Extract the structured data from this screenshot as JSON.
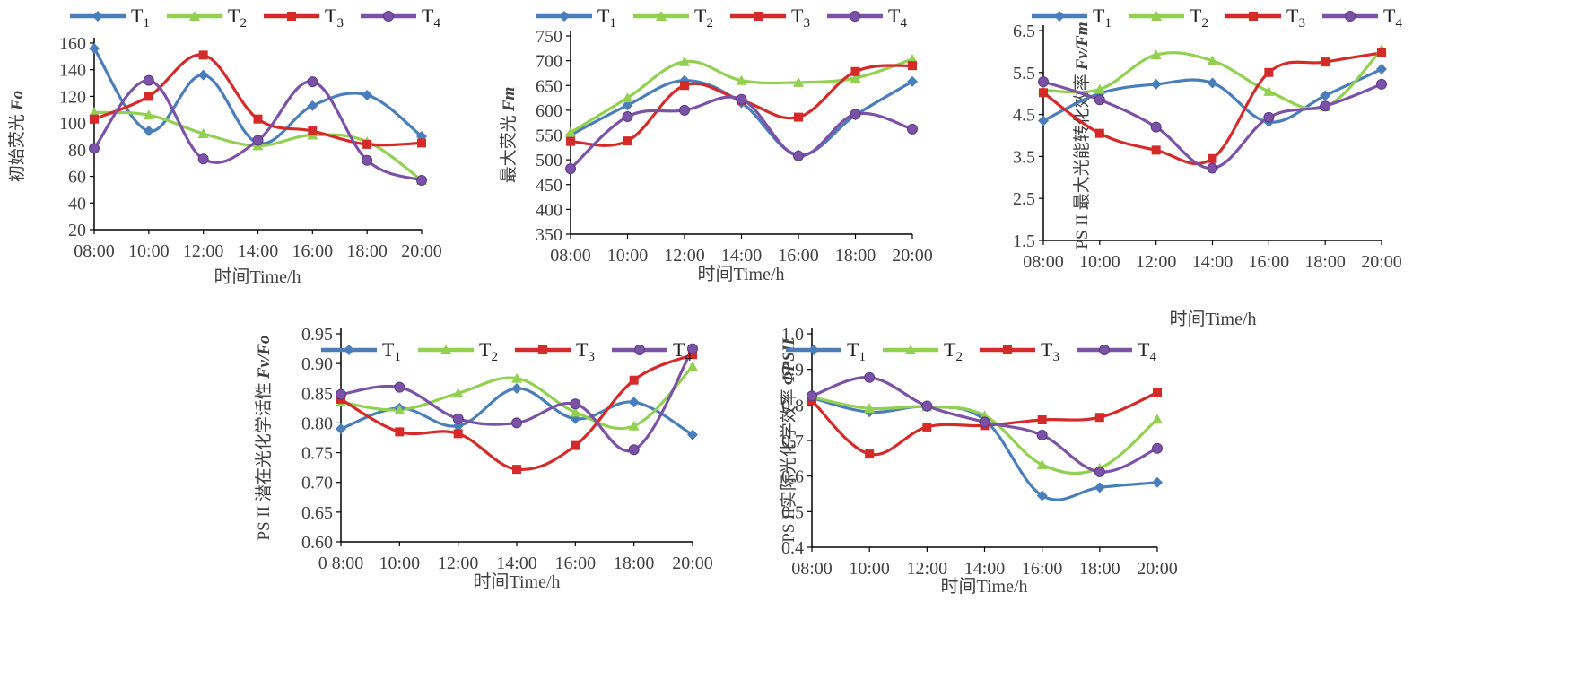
{
  "series_colors": {
    "T1": "#4a7ebb",
    "T2": "#92d050",
    "T3": "#d42a2a",
    "T4": "#7b52a6"
  },
  "series_markers": {
    "T1": "diamond",
    "T2": "triangle",
    "T3": "square",
    "T4": "circle"
  },
  "legend": [
    {
      "key": "T1",
      "main": "T",
      "sub": "1"
    },
    {
      "key": "T2",
      "main": "T",
      "sub": "2"
    },
    {
      "key": "T3",
      "main": "T",
      "sub": "3"
    },
    {
      "key": "T4",
      "main": "T",
      "sub": "4"
    }
  ],
  "chart_data": [
    {
      "type": "line",
      "ylabel": "初始荧光",
      "ylabel_italic": "Fo",
      "xlabel": "时间Time/h",
      "x": [
        "08:00",
        "10:00",
        "12:00",
        "14:00",
        "16:00",
        "18:00",
        "20:00"
      ],
      "ylim": [
        20,
        160
      ],
      "ystep": 20,
      "ydecimals": 0,
      "series": [
        {
          "key": "T1",
          "values": [
            156,
            94,
            136,
            85,
            113,
            121,
            90
          ]
        },
        {
          "key": "T2",
          "values": [
            108,
            106,
            92,
            83,
            91,
            86,
            57
          ]
        },
        {
          "key": "T3",
          "values": [
            103,
            120,
            151,
            103,
            94,
            84,
            85
          ]
        },
        {
          "key": "T4",
          "values": [
            81,
            132,
            73,
            87,
            131,
            72,
            57
          ]
        }
      ]
    },
    {
      "type": "line",
      "ylabel": "最大荧光",
      "ylabel_italic": "Fm",
      "xlabel": "时间Time/h",
      "x": [
        "08:00",
        "10:00",
        "12:00",
        "14:00",
        "16:00",
        "18:00",
        "20:00"
      ],
      "ylim": [
        350,
        750
      ],
      "ystep": 50,
      "ydecimals": 0,
      "series": [
        {
          "key": "T1",
          "values": [
            550,
            610,
            660,
            615,
            510,
            590,
            658
          ]
        },
        {
          "key": "T2",
          "values": [
            555,
            625,
            698,
            660,
            656,
            665,
            703
          ]
        },
        {
          "key": "T3",
          "values": [
            537,
            538,
            650,
            620,
            586,
            678,
            690
          ]
        },
        {
          "key": "T4",
          "values": [
            482,
            587,
            600,
            622,
            508,
            592,
            562
          ]
        }
      ]
    },
    {
      "type": "line",
      "ylabel": "PS II 最大光能转化效率",
      "ylabel_italic": "Fv/Fm",
      "xlabel": "时间Time/h",
      "x": [
        "08:00",
        "10:00",
        "12:00",
        "14:00",
        "16:00",
        "18:00",
        "20:00"
      ],
      "ylim": [
        1.5,
        6.5
      ],
      "ystep": 1,
      "ydecimals": 1,
      "series": [
        {
          "key": "T1",
          "values": [
            4.35,
            5.0,
            5.22,
            5.25,
            4.32,
            4.95,
            5.58
          ]
        },
        {
          "key": "T2",
          "values": [
            5.08,
            5.1,
            5.92,
            5.78,
            5.05,
            4.68,
            6.05
          ]
        },
        {
          "key": "T3",
          "values": [
            5.02,
            4.05,
            3.65,
            3.45,
            5.5,
            5.75,
            5.97
          ]
        },
        {
          "key": "T4",
          "values": [
            5.28,
            4.85,
            4.2,
            3.22,
            4.43,
            4.7,
            5.22
          ]
        }
      ]
    },
    {
      "type": "line",
      "ylabel": "PS II 潜在光化学活性",
      "ylabel_italic": "Fv/Fo",
      "xlabel": "时间Time/h",
      "x": [
        "0 8:00",
        "10:00",
        "12:00",
        "14:00",
        "16:00",
        "18:00",
        "20:00"
      ],
      "ylim": [
        0.6,
        0.95
      ],
      "ystep": 0.05,
      "ydecimals": 2,
      "series": [
        {
          "key": "T1",
          "values": [
            0.79,
            0.825,
            0.795,
            0.858,
            0.807,
            0.835,
            0.78
          ]
        },
        {
          "key": "T2",
          "values": [
            0.835,
            0.822,
            0.85,
            0.875,
            0.818,
            0.795,
            0.895
          ]
        },
        {
          "key": "T3",
          "values": [
            0.84,
            0.785,
            0.782,
            0.722,
            0.762,
            0.872,
            0.915
          ]
        },
        {
          "key": "T4",
          "values": [
            0.848,
            0.86,
            0.807,
            0.8,
            0.832,
            0.755,
            0.925
          ]
        }
      ]
    },
    {
      "type": "line",
      "ylabel": "PS II实际光化学效率",
      "ylabel_italic": "ΦPSII",
      "xlabel": "时间Time/h",
      "x": [
        "08:00",
        "10:00",
        "12:00",
        "14:00",
        "16:00",
        "18:00",
        "20:00"
      ],
      "ylim": [
        0.4,
        1.0
      ],
      "ystep": 0.1,
      "ydecimals": 1,
      "series": [
        {
          "key": "T1",
          "values": [
            0.82,
            0.78,
            0.795,
            0.758,
            0.545,
            0.568,
            0.582
          ]
        },
        {
          "key": "T2",
          "values": [
            0.822,
            0.79,
            0.795,
            0.77,
            0.632,
            0.622,
            0.76
          ]
        },
        {
          "key": "T3",
          "values": [
            0.812,
            0.662,
            0.738,
            0.742,
            0.758,
            0.765,
            0.835
          ]
        },
        {
          "key": "T4",
          "values": [
            0.825,
            0.877,
            0.797,
            0.752,
            0.715,
            0.612,
            0.678
          ]
        }
      ]
    }
  ]
}
